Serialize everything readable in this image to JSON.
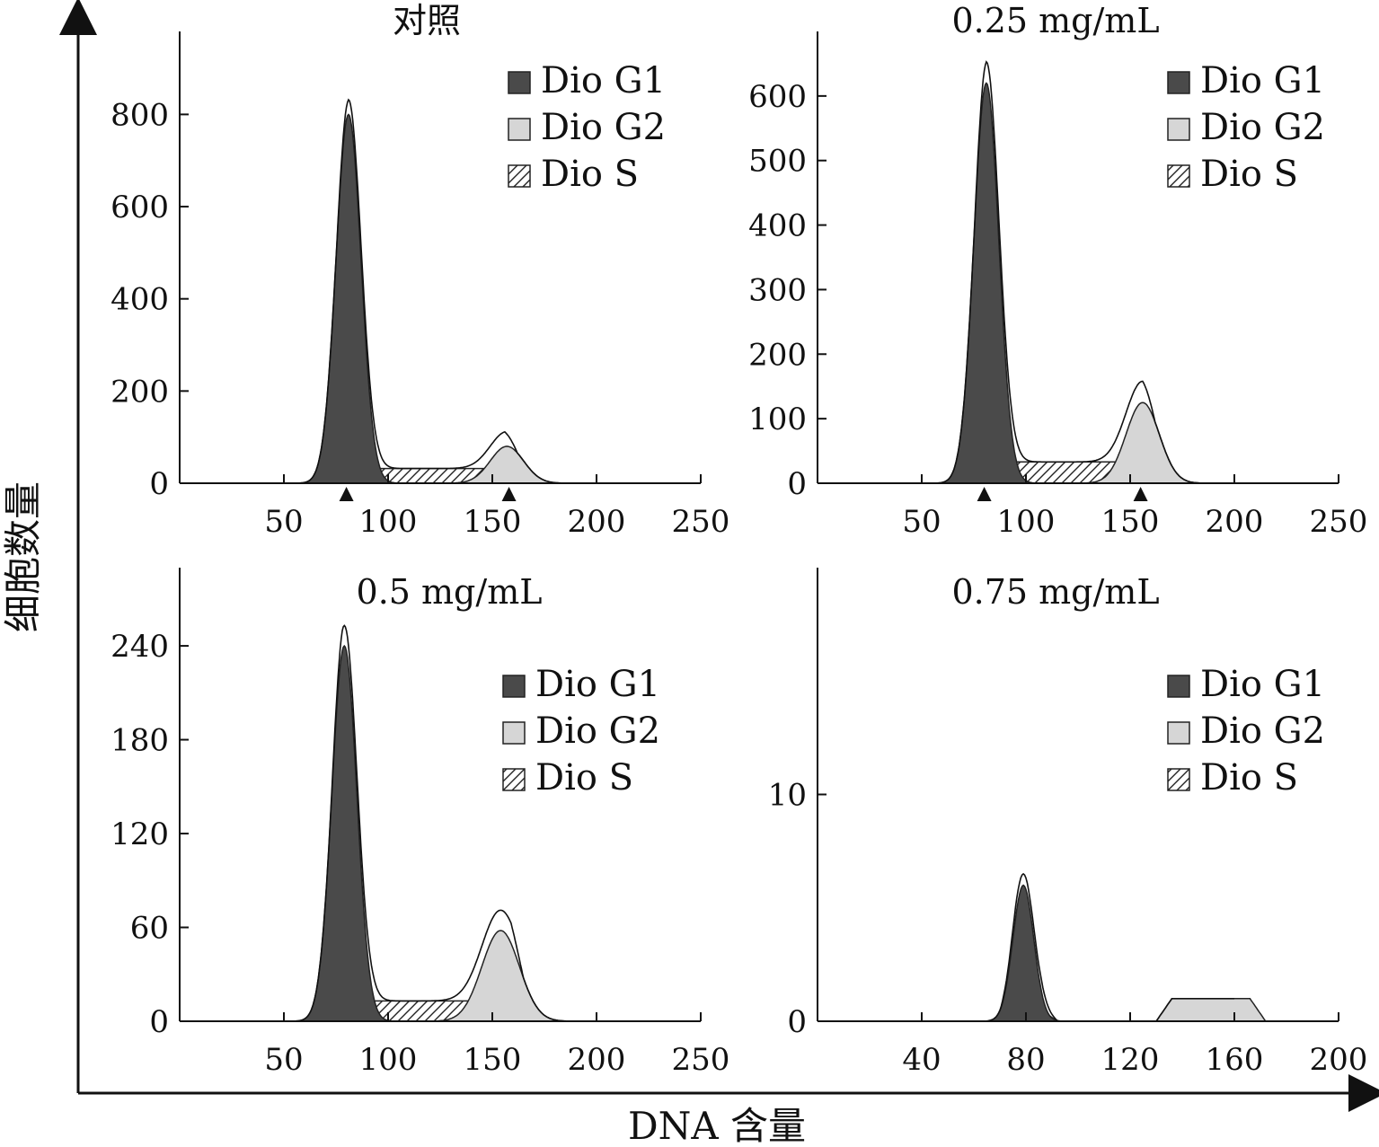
{
  "figure": {
    "xlabel": "DNA 含量",
    "ylabel": "细胞数量"
  },
  "legend_style": {
    "g1_color": "#4a4a4a",
    "g2_color": "#d6d6d6",
    "s_pattern": "diagonal-hatch"
  },
  "chart_data": [
    {
      "type": "area",
      "title": "对照",
      "xlim": [
        0,
        250
      ],
      "ylim": [
        0,
        980
      ],
      "xticks": [
        50,
        100,
        150,
        200,
        250
      ],
      "yticks": [
        0,
        200,
        400,
        600,
        800
      ],
      "markers": [
        80,
        158
      ],
      "legend": [
        "Dio G1",
        "Dio G2",
        "Dio S"
      ],
      "legend_position": "top-right",
      "series": [
        {
          "name": "Dio G1",
          "model": "gaussian",
          "peak_x": 81,
          "peak_y": 800,
          "sigma": 6
        },
        {
          "name": "Dio G2",
          "model": "gaussian",
          "peak_x": 157,
          "peak_y": 80,
          "sigma": 8
        },
        {
          "name": "Dio S",
          "model": "plateau",
          "x_start": 75,
          "x_end": 162,
          "level": 32
        }
      ]
    },
    {
      "type": "area",
      "title": "0.25 mg/mL",
      "xlim": [
        0,
        250
      ],
      "ylim": [
        0,
        700
      ],
      "xticks": [
        50,
        100,
        150,
        200,
        250
      ],
      "yticks": [
        0,
        100,
        200,
        300,
        400,
        500,
        600
      ],
      "markers": [
        80,
        155
      ],
      "legend": [
        "Dio G1",
        "Dio G2",
        "Dio S"
      ],
      "legend_position": "top-right",
      "series": [
        {
          "name": "Dio G1",
          "model": "gaussian",
          "peak_x": 81,
          "peak_y": 620,
          "sigma": 6
        },
        {
          "name": "Dio G2",
          "model": "gaussian",
          "peak_x": 156,
          "peak_y": 125,
          "sigma": 8
        },
        {
          "name": "Dio S",
          "model": "plateau",
          "x_start": 75,
          "x_end": 162,
          "level": 33
        }
      ]
    },
    {
      "type": "area",
      "title": "0.5 mg/mL",
      "xlim": [
        0,
        250
      ],
      "ylim": [
        0,
        290
      ],
      "xticks": [
        50,
        100,
        150,
        200,
        250
      ],
      "yticks": [
        0,
        60,
        120,
        180,
        240
      ],
      "markers": [],
      "legend": [
        "Dio G1",
        "Dio G2",
        "Dio S"
      ],
      "legend_position": "top-right",
      "series": [
        {
          "name": "Dio G1",
          "model": "gaussian",
          "peak_x": 79,
          "peak_y": 240,
          "sigma": 6
        },
        {
          "name": "Dio G2",
          "model": "gaussian",
          "peak_x": 154,
          "peak_y": 58,
          "sigma": 9
        },
        {
          "name": "Dio S",
          "model": "plateau",
          "x_start": 72,
          "x_end": 165,
          "level": 13
        }
      ]
    },
    {
      "type": "area",
      "title": "0.75 mg/mL",
      "xlim": [
        0,
        200
      ],
      "ylim": [
        0,
        20
      ],
      "xticks": [
        40,
        80,
        120,
        160,
        200
      ],
      "yticks": [
        0,
        10
      ],
      "markers": [],
      "legend": [
        "Dio G1",
        "Dio G2",
        "Dio S"
      ],
      "legend_position": "top-right",
      "series": [
        {
          "name": "Dio G1",
          "model": "gaussian",
          "peak_x": 79,
          "peak_y": 6,
          "sigma": 4
        },
        {
          "name": "Dio G2",
          "model": "plateau",
          "x_start": 130,
          "x_end": 172,
          "level": 1
        },
        {
          "name": "Dio S",
          "model": "plateau",
          "x_start": 70,
          "x_end": 92,
          "level": 0.5
        }
      ]
    }
  ]
}
